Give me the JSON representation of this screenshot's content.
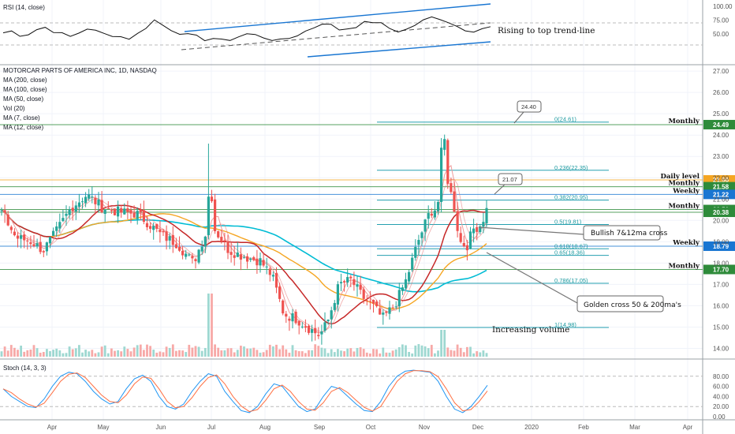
{
  "chart_data": {
    "type": "candlestick",
    "symbol_title": "MOTORCAR PARTS OF AMERICA INC, 1D, NASDAQ",
    "indicator_legend": [
      "MA (200, close)",
      "MA (100, close)",
      "MA (50, close)",
      "Vol (20)",
      "MA (7, close)",
      "MA (12, close)"
    ],
    "price_axis": {
      "ylim": [
        13.5,
        27.3
      ],
      "ticks": [
        27.0,
        26.0,
        25.0,
        24.0,
        23.0,
        22.0,
        21.0,
        20.0,
        19.0,
        18.0,
        17.0,
        16.0,
        15.0,
        14.0
      ]
    },
    "rsi": {
      "label": "RSI (14, close)",
      "ticks": [
        "100.00",
        "75.00",
        "50.00"
      ],
      "annotation": "Rising to top trend-line"
    },
    "stoch": {
      "label": "Stoch (14, 3, 3)",
      "ticks": [
        "80.00",
        "60.00",
        "40.00",
        "20.00",
        "0.00"
      ]
    },
    "x_ticks": [
      "Apr",
      "May",
      "Jun",
      "Jul",
      "Aug",
      "Sep",
      "Oct",
      "Nov",
      "Dec",
      "2020",
      "Feb",
      "Mar",
      "Apr"
    ],
    "levels": [
      {
        "label": "Monthly",
        "price": 24.49,
        "tag": "24.49",
        "color": "#2e8b3a"
      },
      {
        "label": "Daily level",
        "price": 21.9,
        "tag": "21.90",
        "color": "#f5a623"
      },
      {
        "label": "Monthly",
        "price": 21.58,
        "tag": "21.58",
        "color": "#2e8b3a"
      },
      {
        "label": "Weekly",
        "price": 21.22,
        "tag": "21.22",
        "color": "#1976d2"
      },
      {
        "label": "Monthly",
        "price": 20.51,
        "tag": "20.51",
        "color": "#2e8b3a"
      },
      {
        "label": "",
        "price": 20.38,
        "tag": "20.38",
        "color": "#2e8b3a"
      },
      {
        "label": "Weekly",
        "price": 18.79,
        "tag": "18.79",
        "color": "#1976d2"
      },
      {
        "label": "Monthly",
        "price": 17.7,
        "tag": "17.70",
        "color": "#2e8b3a"
      }
    ],
    "fib_levels": [
      {
        "label": "0(24.61)",
        "price": 24.61
      },
      {
        "label": "0.236(22.35)",
        "price": 22.35
      },
      {
        "label": "0.382(20.95)",
        "price": 20.95
      },
      {
        "label": "0.5(19.81)",
        "price": 19.81
      },
      {
        "label": "0.618(18.67)",
        "price": 18.67
      },
      {
        "label": "0.65(18.36)",
        "price": 18.36
      },
      {
        "label": "0.786(17.05)",
        "price": 17.05
      },
      {
        "label": "1(14.98)",
        "price": 14.98
      }
    ],
    "callouts": [
      "24.40",
      "21.07"
    ],
    "annotations": [
      "Bullish 7&12ma cross",
      "Golden cross 50 & 200ma's",
      "Increasing volume"
    ],
    "series_colors": {
      "up": "#26a69a",
      "down": "#ef5350",
      "ma200": "#00bcd4",
      "ma100": "#f5a623",
      "ma50": "#c62828",
      "ma7": "#ef9a9a",
      "ma12": "#26a69a",
      "rsi": "#111111",
      "stoch_k": "#2196f3",
      "stoch_d": "#ff7043"
    }
  }
}
